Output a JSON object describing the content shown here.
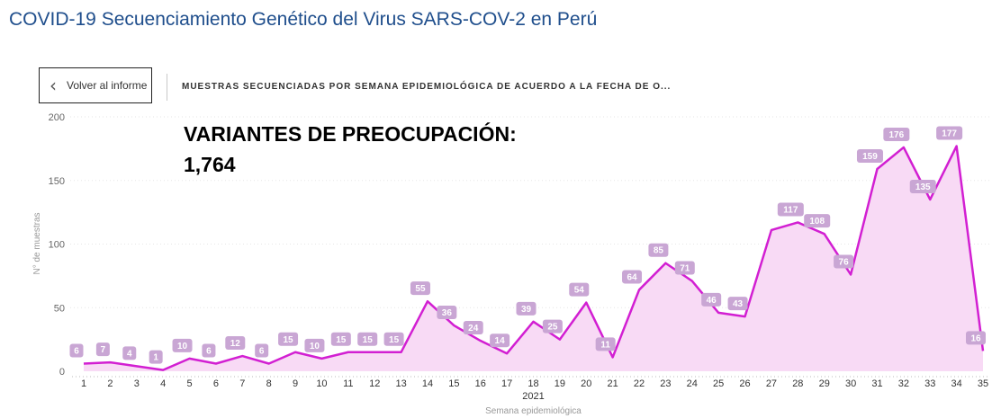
{
  "page": {
    "title": "COVID-19 Secuenciamiento Genético del Virus SARS-COV-2 en Perú"
  },
  "nav": {
    "back_label": "Volver al informe",
    "back_icon": "chevron-left-icon"
  },
  "visual": {
    "title": "MUESTRAS SECUENCIADAS POR SEMANA EPIDEMIOLÓGICA DE ACUERDO A LA FECHA DE O..."
  },
  "kpi": {
    "label": "VARIANTES DE PREOCUPACIÓN:",
    "value": "1,764"
  },
  "chart_data": {
    "type": "area",
    "x": [
      1,
      2,
      3,
      4,
      5,
      6,
      7,
      8,
      9,
      10,
      11,
      12,
      13,
      14,
      15,
      16,
      17,
      18,
      19,
      20,
      21,
      22,
      23,
      24,
      25,
      26,
      27,
      28,
      29,
      30,
      31,
      32,
      33,
      34,
      35
    ],
    "series": [
      {
        "name": "",
        "values": [
          6,
          7,
          4,
          1,
          10,
          6,
          12,
          6,
          15,
          10,
          15,
          15,
          15,
          55,
          36,
          24,
          14,
          39,
          25,
          54,
          11,
          64,
          85,
          71,
          46,
          43,
          111,
          117,
          108,
          76,
          159,
          176,
          135,
          177,
          16
        ]
      }
    ],
    "data_labels": [
      "6",
      "7",
      "4",
      "1",
      "10",
      "6",
      "12",
      "6",
      "15",
      "10",
      "15",
      "15",
      "15",
      "55",
      "36",
      "24",
      "14",
      "39",
      "25",
      "54",
      "11",
      "64",
      "85",
      "71",
      "46",
      "43",
      "",
      "117",
      "108",
      "76",
      "159",
      "176",
      "135",
      "177",
      "16"
    ],
    "ylim": [
      0,
      200
    ],
    "yticks": [
      0,
      50,
      100,
      150,
      200
    ],
    "year_label": "2021",
    "xlabel": "Semana epidemiológica",
    "ylabel": "N° de muestras",
    "line_color": "#d21fd2",
    "fill_color": "#f8daf5",
    "label_bg_color": "#c9a6d4",
    "grid": true
  }
}
